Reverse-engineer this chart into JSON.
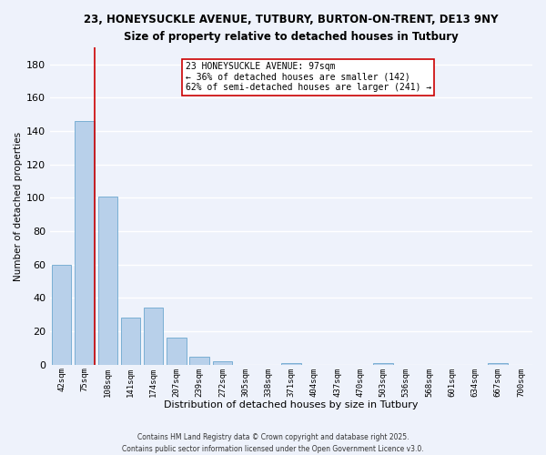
{
  "title1": "23, HONEYSUCKLE AVENUE, TUTBURY, BURTON-ON-TRENT, DE13 9NY",
  "title2": "Size of property relative to detached houses in Tutbury",
  "xlabel": "Distribution of detached houses by size in Tutbury",
  "ylabel": "Number of detached properties",
  "bar_color": "#b8d0ea",
  "bar_edge_color": "#7aafd4",
  "bin_labels": [
    "42sqm",
    "75sqm",
    "108sqm",
    "141sqm",
    "174sqm",
    "207sqm",
    "239sqm",
    "272sqm",
    "305sqm",
    "338sqm",
    "371sqm",
    "404sqm",
    "437sqm",
    "470sqm",
    "503sqm",
    "536sqm",
    "568sqm",
    "601sqm",
    "634sqm",
    "667sqm",
    "700sqm"
  ],
  "bar_heights": [
    60,
    146,
    101,
    28,
    34,
    16,
    5,
    2,
    0,
    0,
    1,
    0,
    0,
    0,
    1,
    0,
    0,
    0,
    0,
    1,
    0
  ],
  "ylim": [
    0,
    190
  ],
  "yticks": [
    0,
    20,
    40,
    60,
    80,
    100,
    120,
    140,
    160,
    180
  ],
  "vline_color": "#cc0000",
  "vline_x_bar_index": 1,
  "annotation_title": "23 HONEYSUCKLE AVENUE: 97sqm",
  "annotation_line1": "← 36% of detached houses are smaller (142)",
  "annotation_line2": "62% of semi-detached houses are larger (241) →",
  "footer1": "Contains HM Land Registry data © Crown copyright and database right 2025.",
  "footer2": "Contains public sector information licensed under the Open Government Licence v3.0.",
  "background_color": "#eef2fb",
  "grid_color": "#ffffff"
}
